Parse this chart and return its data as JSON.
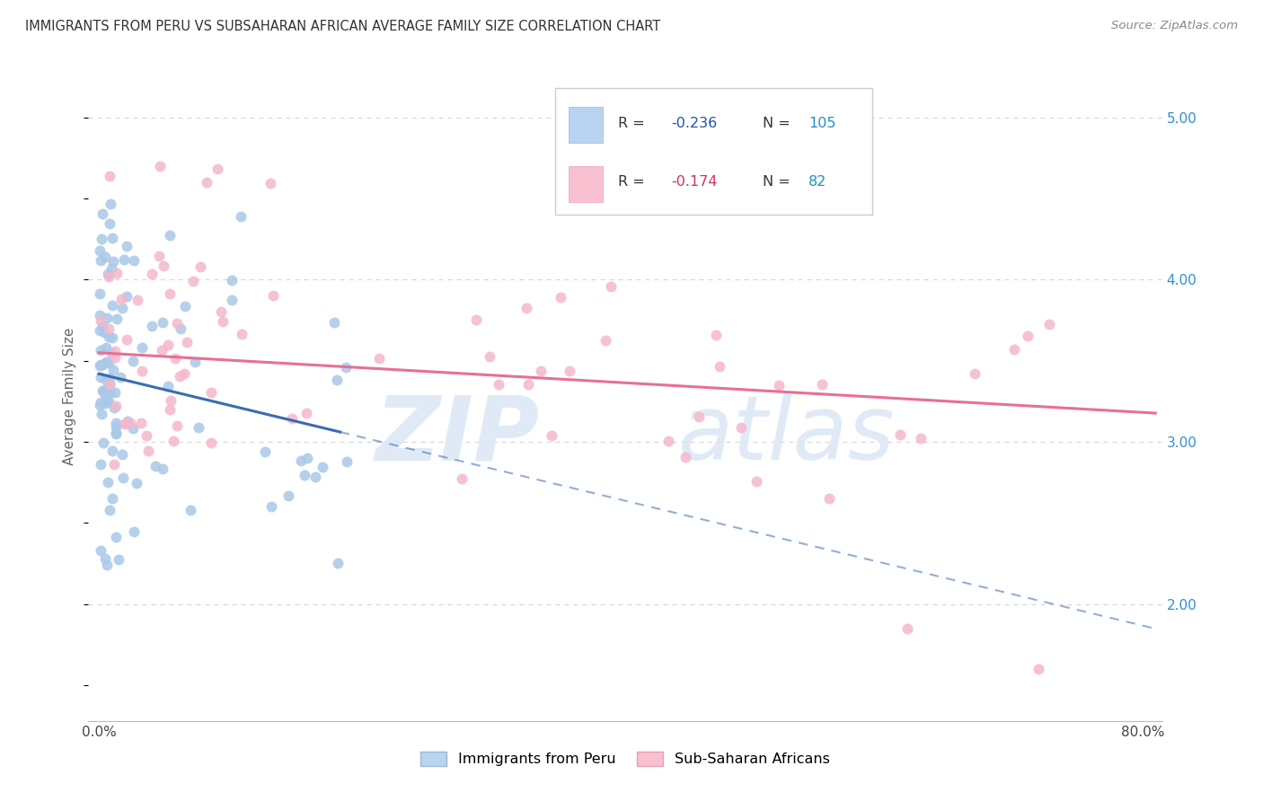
{
  "title": "IMMIGRANTS FROM PERU VS SUBSAHARAN AFRICAN AVERAGE FAMILY SIZE CORRELATION CHART",
  "source": "Source: ZipAtlas.com",
  "ylabel": "Average Family Size",
  "legend_label_blue": "Immigrants from Peru",
  "legend_label_pink": "Sub-Saharan Africans",
  "blue_scatter_color": "#aac8e8",
  "pink_scatter_color": "#f4b8cc",
  "blue_line_color": "#3a6cb0",
  "pink_line_color": "#e87090",
  "blue_legend_color": "#b8d4f0",
  "pink_legend_color": "#f8c0d0",
  "right_tick_color": "#3090d0",
  "grid_color": "#d8d8d8",
  "title_color": "#333333",
  "source_color": "#888888",
  "ylabel_color": "#666666",
  "watermark_zip_color": "#dde8f5",
  "watermark_atlas_color": "#dde8f5",
  "seed": 12345
}
